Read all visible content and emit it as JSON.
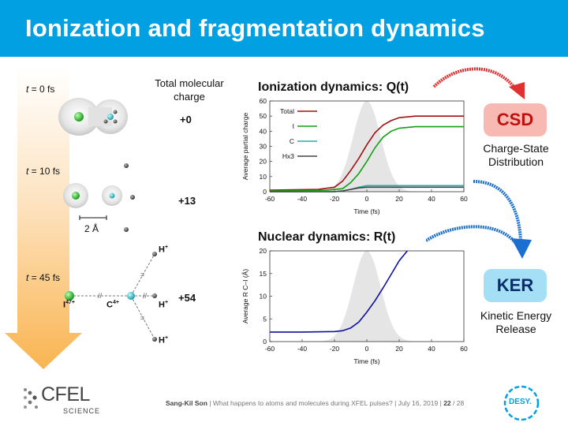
{
  "header": {
    "title": "Ionization and fragmentation dynamics"
  },
  "left": {
    "t0_var": "t",
    "t0_rest": " = 0 fs",
    "t1_var": "t",
    "t1_rest": " = 10 fs",
    "t2_var": "t",
    "t2_rest": " = 45 fs",
    "total_charge_title": "Total molecular charge",
    "charge_0": "+0",
    "charge_1": "+13",
    "charge_2": "+54",
    "scale_label": "2 Å",
    "ion_I": "I",
    "ion_I_sup": "47+",
    "ion_C": "C",
    "ion_C_sup": "4+",
    "ion_H1": "H",
    "ion_H1_sup": "+",
    "ion_H2": "H",
    "ion_H2_sup": "+",
    "ion_H3": "H",
    "ion_H3_sup": "+"
  },
  "chart_data": [
    {
      "type": "line",
      "title": "Ionization dynamics: Q(t)",
      "xlabel": "Time (fs)",
      "ylabel": "Average partial charge",
      "xlim": [
        -60,
        60
      ],
      "ylim": [
        0,
        60
      ],
      "xticks": [
        -60,
        -40,
        -20,
        0,
        20,
        40,
        60
      ],
      "yticks": [
        0,
        10,
        20,
        30,
        40,
        50,
        60
      ],
      "legend_position": "top-left",
      "pulse": {
        "center": 0,
        "fwhm": 20,
        "color": "#e5e5e5"
      },
      "series": [
        {
          "name": "Total",
          "color": "#a01010",
          "x": [
            -60,
            -30,
            -20,
            -15,
            -10,
            -5,
            0,
            5,
            10,
            15,
            20,
            30,
            40,
            60
          ],
          "y": [
            1,
            1.5,
            3,
            7,
            14,
            22,
            31,
            39,
            44,
            47,
            49,
            50,
            50,
            50
          ]
        },
        {
          "name": "I",
          "color": "#10a010",
          "x": [
            -60,
            -25,
            -15,
            -10,
            -5,
            0,
            5,
            10,
            15,
            20,
            30,
            40,
            60
          ],
          "y": [
            0.5,
            1,
            2,
            6,
            12,
            20,
            29,
            36,
            40,
            42,
            43,
            43,
            43
          ]
        },
        {
          "name": "C",
          "color": "#20b0b0",
          "x": [
            -60,
            -20,
            -15,
            -10,
            -5,
            0,
            5,
            10,
            60
          ],
          "y": [
            0,
            0,
            0.5,
            1.5,
            3,
            4,
            4,
            4,
            4
          ]
        },
        {
          "name": "Hx3",
          "color": "#444444",
          "x": [
            -60,
            -20,
            -15,
            -10,
            -5,
            0,
            5,
            60
          ],
          "y": [
            0,
            0,
            0.5,
            1.5,
            2.5,
            3,
            3,
            3
          ]
        }
      ]
    },
    {
      "type": "line",
      "title": "Nuclear dynamics: R(t)",
      "xlabel": "Time (fs)",
      "ylabel": "Average R C–I (Å)",
      "xlim": [
        -60,
        60
      ],
      "ylim": [
        0,
        20
      ],
      "xticks": [
        -60,
        -40,
        -20,
        0,
        20,
        40,
        60
      ],
      "yticks": [
        0,
        5,
        10,
        15,
        20
      ],
      "pulse": {
        "center": 0,
        "fwhm": 20,
        "color": "#e5e5e5"
      },
      "series": [
        {
          "name": "",
          "color": "#1010a0",
          "x": [
            -60,
            -40,
            -20,
            -15,
            -10,
            -5,
            0,
            5,
            10,
            15,
            20,
            25
          ],
          "y": [
            2.1,
            2.1,
            2.2,
            2.4,
            3.0,
            4.3,
            6.5,
            9.0,
            11.8,
            14.8,
            17.8,
            20.0
          ]
        }
      ]
    }
  ],
  "right": {
    "csd_label": "CSD",
    "csd_desc": "Charge-State Distribution",
    "ker_label": "KER",
    "ker_desc": "Kinetic Energy Release",
    "colors": {
      "csd_bg": "#f7b9b1",
      "csd_text": "#c01010",
      "ker_bg": "#a4dff5",
      "ker_text": "#0b2d6b",
      "arrow_red": "#e03030",
      "arrow_blue": "#1a6fd0"
    }
  },
  "footer": {
    "author": "Sang-Kil Son",
    "talk": "| What happens to atoms and molecules during XFEL pulses? | July 16, 2019 |",
    "page": "22",
    "total": "/ 28",
    "logo_left_top": "CFEL",
    "logo_left_bottom": "SCIENCE",
    "logo_right": "DESY."
  }
}
